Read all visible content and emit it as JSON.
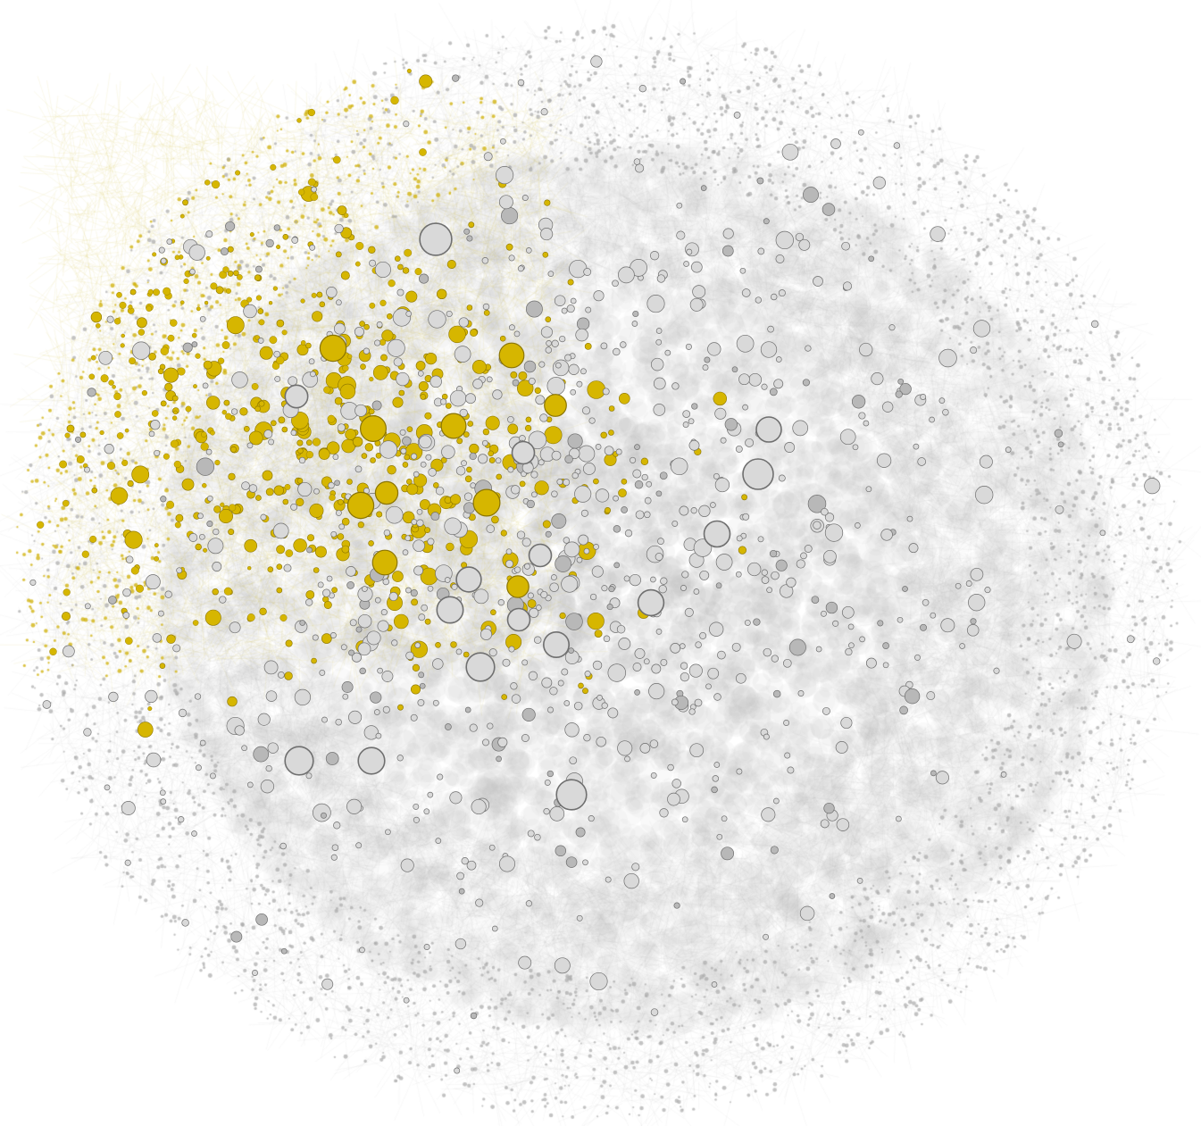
{
  "colors": {
    "background": "#ffffff",
    "cloud": "#c8c8c8",
    "cloud_light": "#dcdcdc",
    "edge_grey": "#bdbdbd",
    "edge_yellow": "#d8c44a",
    "node_grey_fill": "#d9d9d9",
    "node_grey_stroke": "#6f6f6f",
    "node_yellow_fill": "#d6b600",
    "node_yellow_stroke": "#8a7400"
  },
  "highlighted_community": {
    "color_name": "yellow",
    "location": "upper-left"
  },
  "layout_style": "force-directed network with dense peripheral hairball"
}
